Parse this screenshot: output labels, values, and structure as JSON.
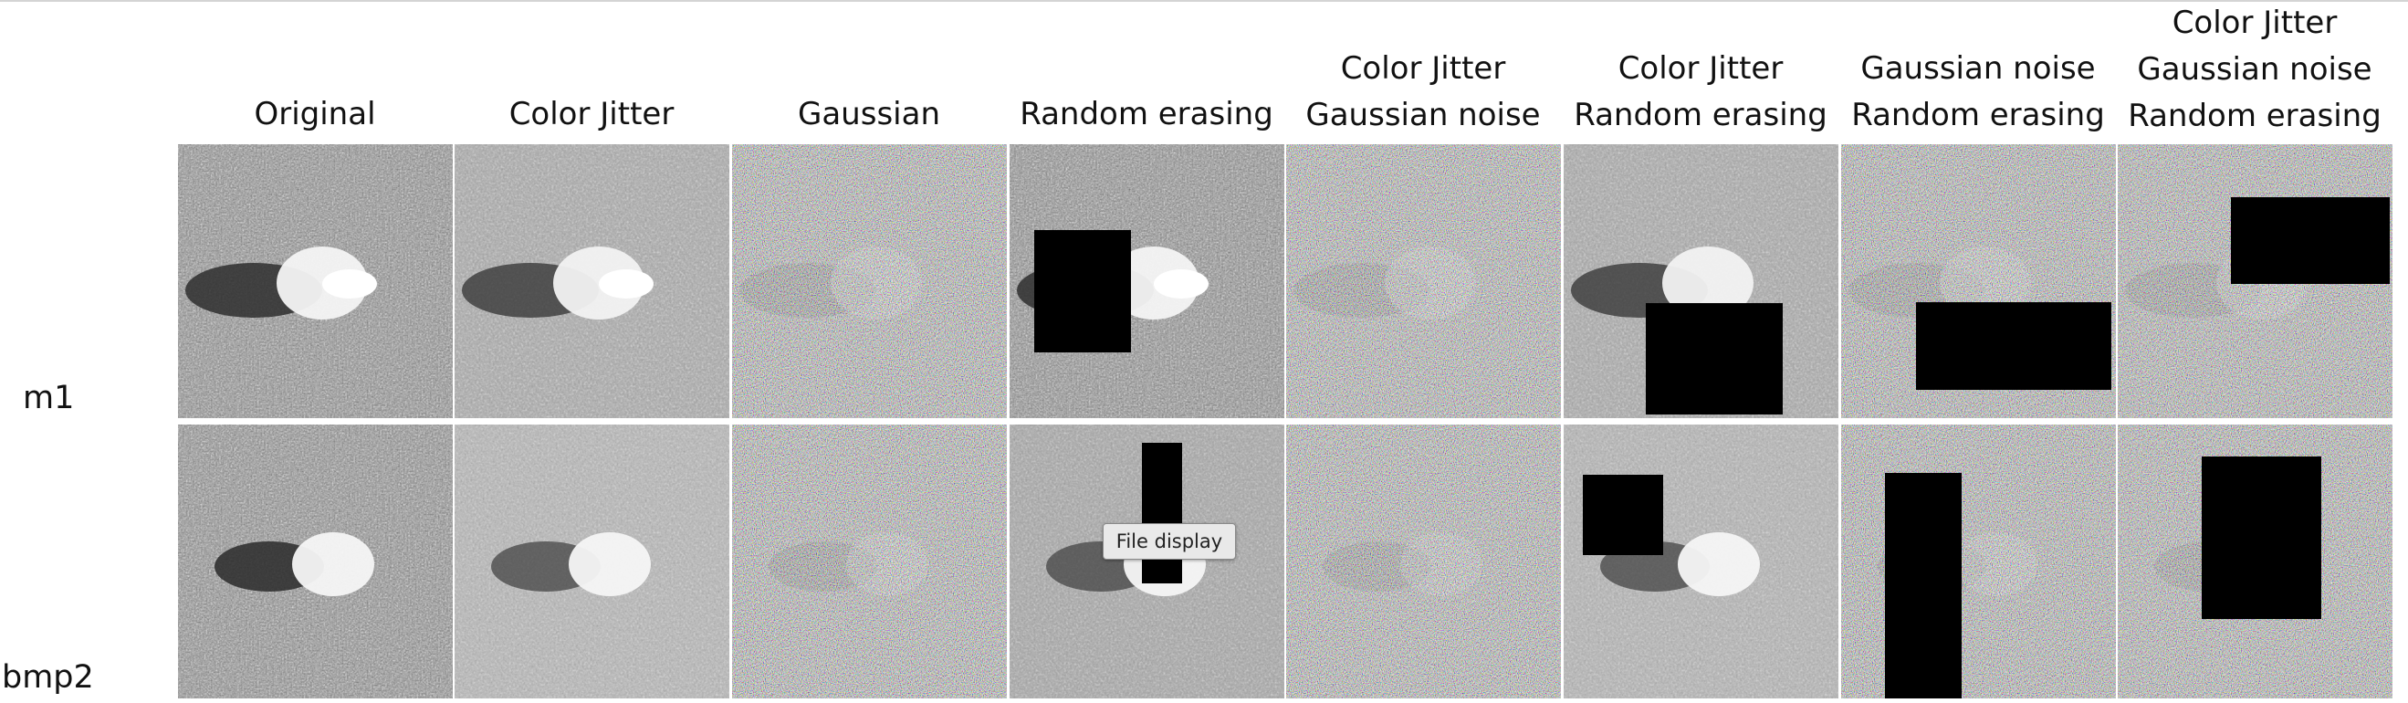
{
  "columns": [
    {
      "label": "Original"
    },
    {
      "label": "Color Jitter"
    },
    {
      "label": "Gaussian"
    },
    {
      "label": "Random erasing"
    },
    {
      "label": "Color Jitter\nGaussian noise"
    },
    {
      "label": "Color Jitter\nRandom erasing"
    },
    {
      "label": "Gaussian noise\nRandom erasing"
    },
    {
      "label": "Color Jitter\nGaussian noise\nRandom erasing"
    }
  ],
  "rows": [
    {
      "label": "m1"
    },
    {
      "label": "bmp2"
    }
  ],
  "tooltip": {
    "text": "File display"
  }
}
